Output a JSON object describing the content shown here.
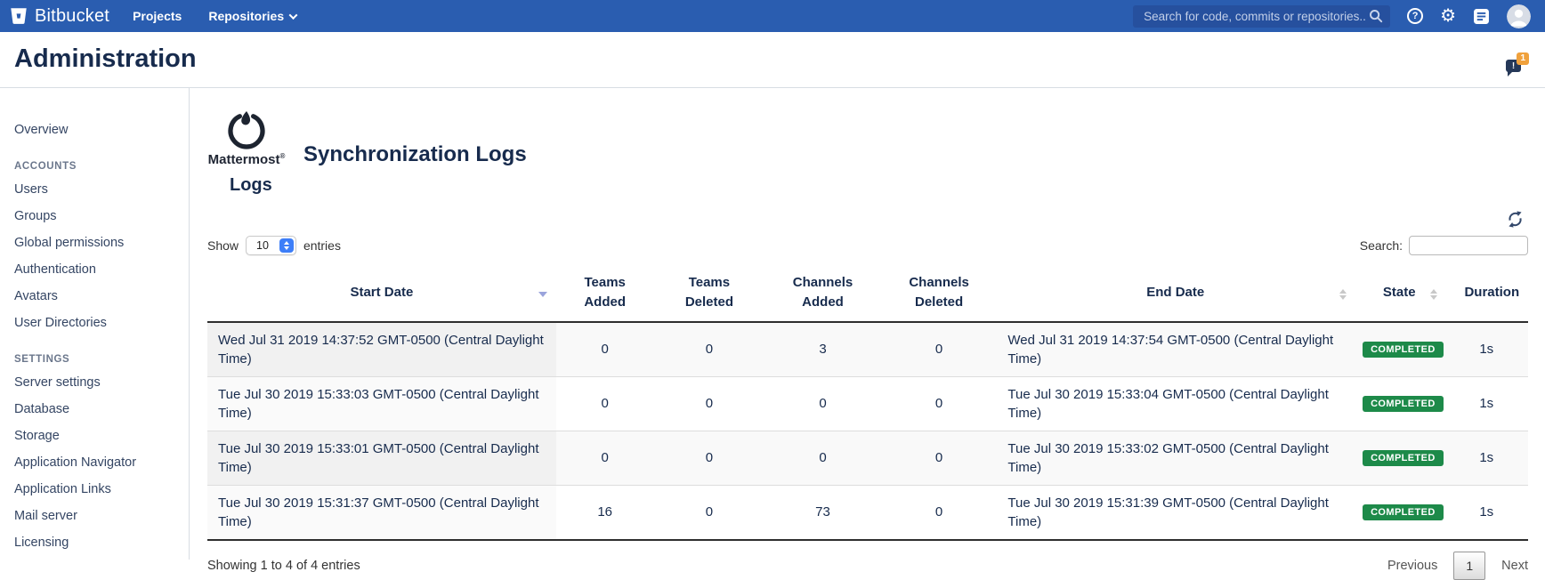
{
  "navbar": {
    "brand": "Bitbucket",
    "links": [
      {
        "label": "Projects"
      },
      {
        "label": "Repositories"
      }
    ],
    "search": {
      "placeholder": "Search for code, commits or repositories..."
    },
    "help_glyph": "?",
    "gear_glyph": "⚙"
  },
  "header": {
    "title": "Administration",
    "notification_mark": "!",
    "notification_count": "1"
  },
  "sidebar": {
    "sections": [
      {
        "heading": null,
        "items": [
          "Overview"
        ]
      },
      {
        "heading": "ACCOUNTS",
        "items": [
          "Users",
          "Groups",
          "Global permissions",
          "Authentication",
          "Avatars",
          "User Directories"
        ]
      },
      {
        "heading": "SETTINGS",
        "items": [
          "Server settings",
          "Database",
          "Storage",
          "Application Navigator",
          "Application Links",
          "Mail server",
          "Licensing"
        ]
      }
    ]
  },
  "main": {
    "logo_text": "Mattermost",
    "logo_reg": "®",
    "page_title": "Synchronization Logs",
    "section_title": "Logs",
    "controls": {
      "show_label": "Show",
      "page_size": "10",
      "entries_label": "entries",
      "search_label": "Search:"
    },
    "table": {
      "columns": [
        {
          "label": "Start Date",
          "sort": "desc"
        },
        {
          "label": "Teams Added",
          "sort": "none"
        },
        {
          "label": "Teams Deleted",
          "sort": "none"
        },
        {
          "label": "Channels Added",
          "sort": "none"
        },
        {
          "label": "Channels Deleted",
          "sort": "none"
        },
        {
          "label": "End Date",
          "sort": "both"
        },
        {
          "label": "State",
          "sort": "both"
        },
        {
          "label": "Duration",
          "sort": "none"
        }
      ],
      "rows": [
        {
          "start": "Wed Jul 31 2019 14:37:52 GMT-0500 (Central Daylight Time)",
          "teams_added": "0",
          "teams_deleted": "0",
          "channels_added": "3",
          "channels_deleted": "0",
          "end": "Wed Jul 31 2019 14:37:54 GMT-0500 (Central Daylight Time)",
          "state": "COMPLETED",
          "duration": "1s"
        },
        {
          "start": "Tue Jul 30 2019 15:33:03 GMT-0500 (Central Daylight Time)",
          "teams_added": "0",
          "teams_deleted": "0",
          "channels_added": "0",
          "channels_deleted": "0",
          "end": "Tue Jul 30 2019 15:33:04 GMT-0500 (Central Daylight Time)",
          "state": "COMPLETED",
          "duration": "1s"
        },
        {
          "start": "Tue Jul 30 2019 15:33:01 GMT-0500 (Central Daylight Time)",
          "teams_added": "0",
          "teams_deleted": "0",
          "channels_added": "0",
          "channels_deleted": "0",
          "end": "Tue Jul 30 2019 15:33:02 GMT-0500 (Central Daylight Time)",
          "state": "COMPLETED",
          "duration": "1s"
        },
        {
          "start": "Tue Jul 30 2019 15:31:37 GMT-0500 (Central Daylight Time)",
          "teams_added": "16",
          "teams_deleted": "0",
          "channels_added": "73",
          "channels_deleted": "0",
          "end": "Tue Jul 30 2019 15:31:39 GMT-0500 (Central Daylight Time)",
          "state": "COMPLETED",
          "duration": "1s"
        }
      ]
    },
    "footer": {
      "summary": "Showing 1 to 4 of 4 entries",
      "previous_label": "Previous",
      "page_label": "1",
      "next_label": "Next"
    }
  },
  "colors": {
    "navbar_bg": "#2a5db0",
    "accent_blue": "#3d7ef8",
    "badge_green": "#1d8a49",
    "text_navy": "#172b4d",
    "notification_orange": "#f0a13c"
  }
}
